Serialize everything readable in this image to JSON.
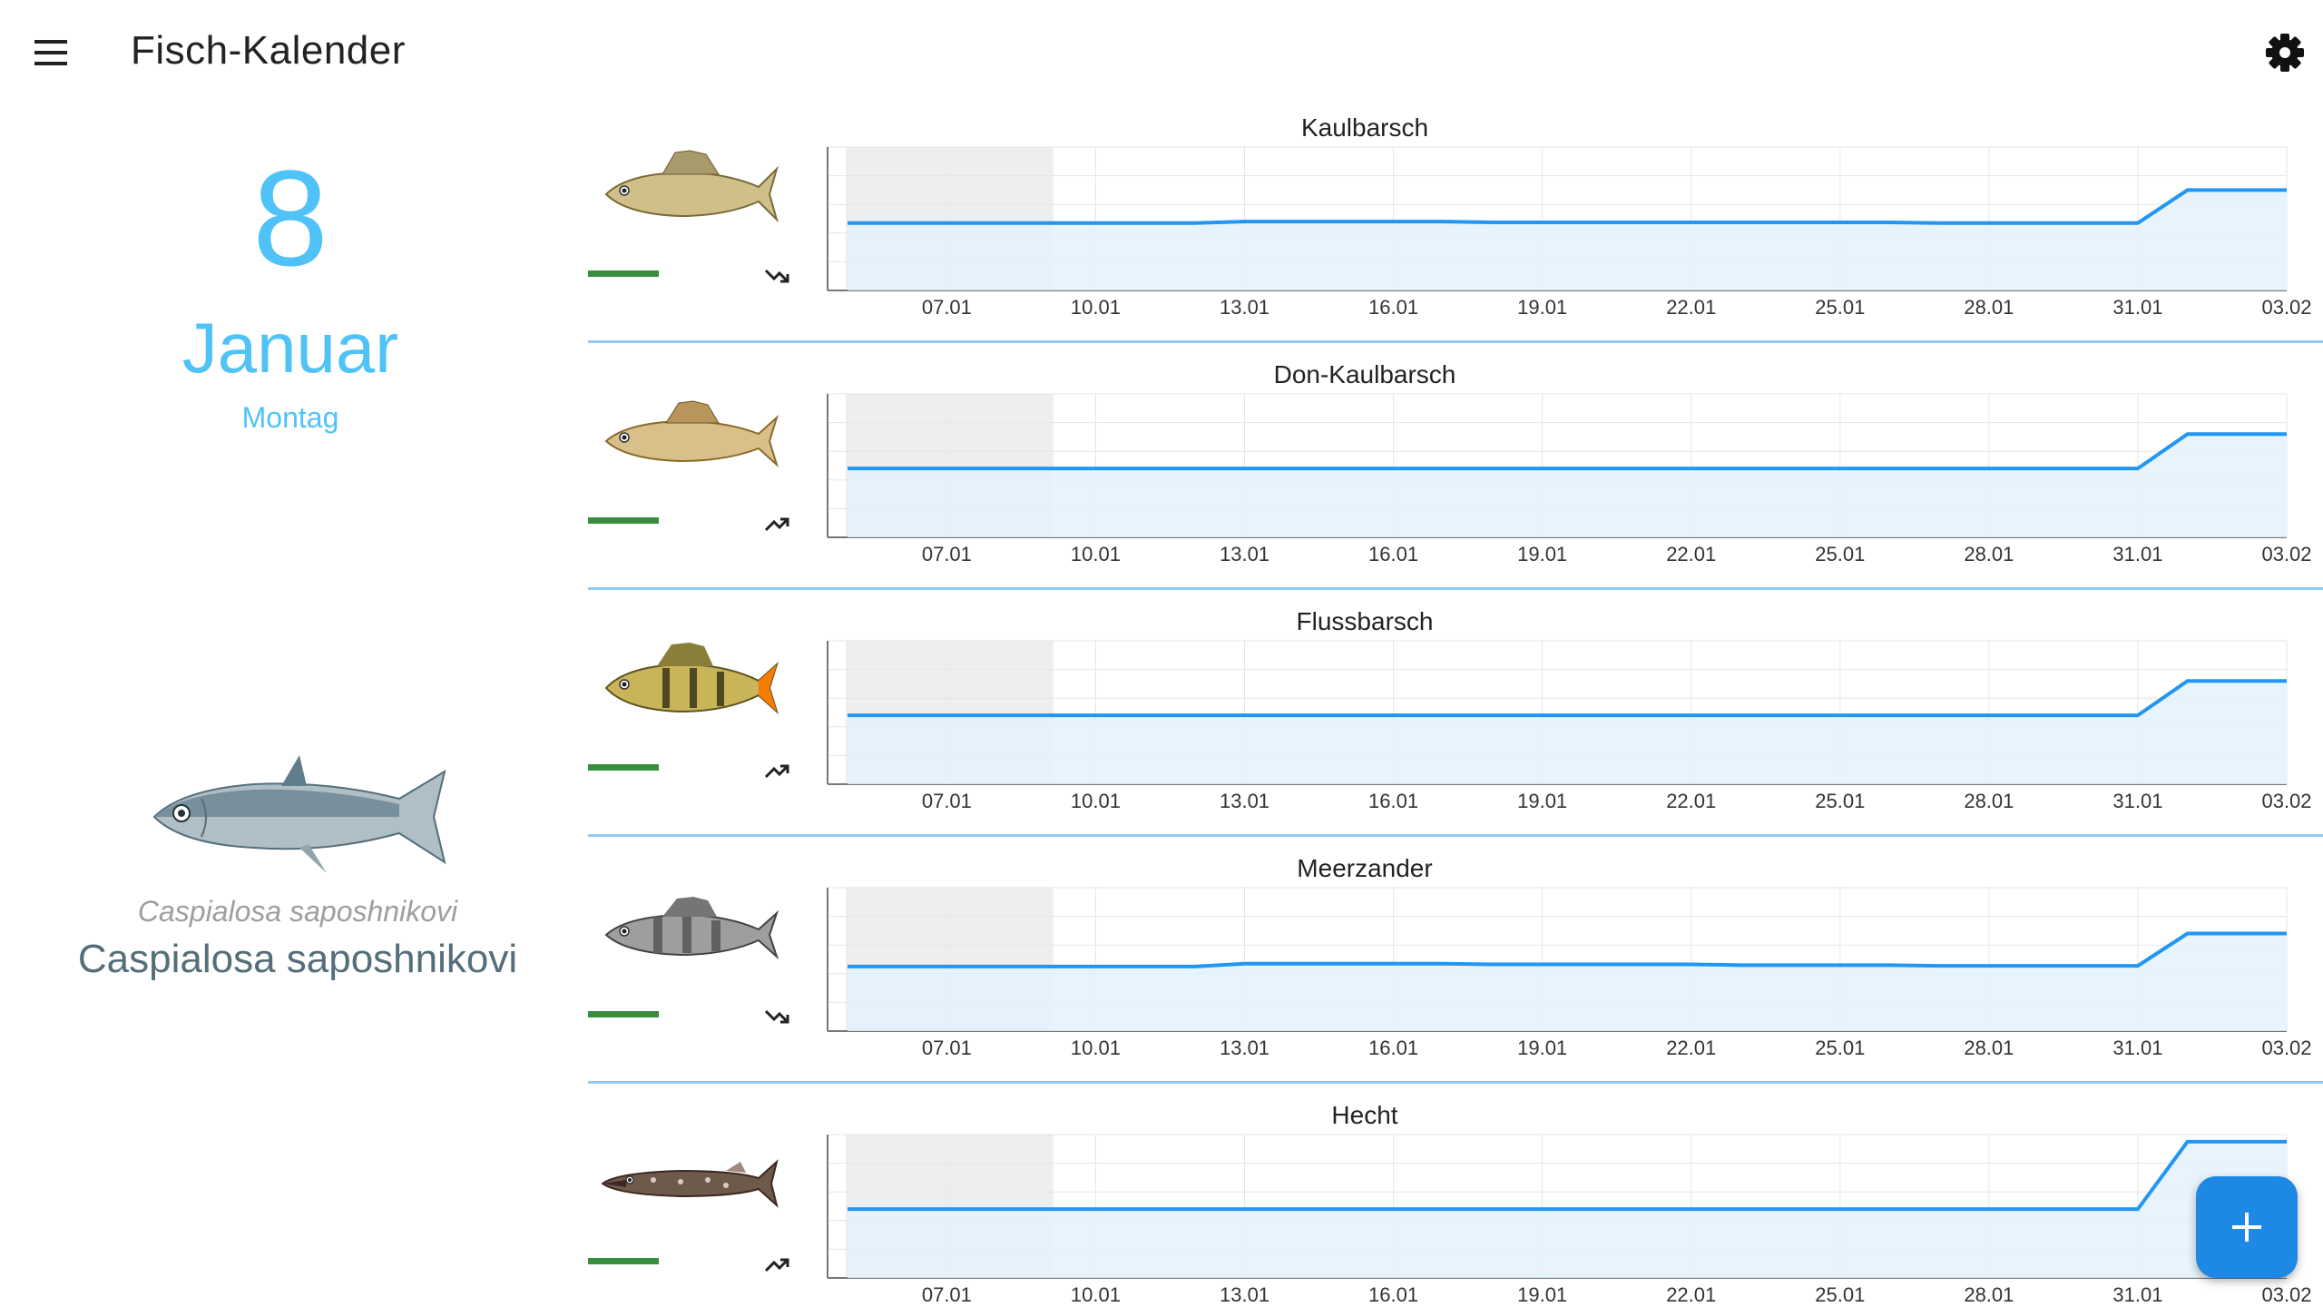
{
  "app": {
    "title": "Fisch-Kalender"
  },
  "date": {
    "day": "8",
    "month": "Januar",
    "weekday": "Montag"
  },
  "featured": {
    "latin_name": "Caspialosa saposhnikovi",
    "common_name": "Caspialosa saposhnikovi"
  },
  "icons": {
    "menu": "menu-icon",
    "settings": "gear-icon",
    "add": "plus-icon",
    "trend_up": "trending-up-icon",
    "trend_down": "trending-down-icon"
  },
  "colors": {
    "accent": "#4fc3f7",
    "line": "#2196f3",
    "fill": "#e3f2fd",
    "rating": "#388e3c",
    "fab": "#1e88e5",
    "divider": "#90caf9"
  },
  "chart_data": [
    {
      "type": "area",
      "title": "Kaulbarsch",
      "trend": "down",
      "x": [
        "05.01",
        "06.01",
        "07.01",
        "08.01",
        "09.01",
        "10.01",
        "11.01",
        "12.01",
        "13.01",
        "14.01",
        "15.01",
        "16.01",
        "17.01",
        "18.01",
        "19.01",
        "20.01",
        "21.01",
        "22.01",
        "23.01",
        "24.01",
        "25.01",
        "26.01",
        "27.01",
        "28.01",
        "29.01",
        "30.01",
        "31.01",
        "01.02",
        "02.02",
        "03.02"
      ],
      "y": [
        47,
        47,
        47,
        47,
        47,
        47,
        47,
        47,
        48,
        48,
        48,
        48,
        48,
        47.5,
        47.5,
        47.5,
        47.5,
        47.5,
        47.5,
        47.5,
        47.5,
        47.5,
        47,
        47,
        47,
        47,
        47,
        70,
        70,
        70
      ],
      "ylim": [
        0,
        100
      ],
      "tick_labels": [
        "07.01",
        "10.01",
        "13.01",
        "16.01",
        "19.01",
        "22.01",
        "25.01",
        "28.01",
        "31.01",
        "03.02"
      ]
    },
    {
      "type": "area",
      "title": "Don-Kaulbarsch",
      "trend": "up",
      "x": [
        "05.01",
        "06.01",
        "07.01",
        "08.01",
        "09.01",
        "10.01",
        "11.01",
        "12.01",
        "13.01",
        "14.01",
        "15.01",
        "16.01",
        "17.01",
        "18.01",
        "19.01",
        "20.01",
        "21.01",
        "22.01",
        "23.01",
        "24.01",
        "25.01",
        "26.01",
        "27.01",
        "28.01",
        "29.01",
        "30.01",
        "31.01",
        "01.02",
        "02.02",
        "03.02"
      ],
      "y": [
        48,
        48,
        48,
        48,
        48,
        48,
        48,
        48,
        48,
        48,
        48,
        48,
        48,
        48,
        48,
        48,
        48,
        48,
        48,
        48,
        48,
        48,
        48,
        48,
        48,
        48,
        48,
        72,
        72,
        72
      ],
      "ylim": [
        0,
        100
      ],
      "tick_labels": [
        "07.01",
        "10.01",
        "13.01",
        "16.01",
        "19.01",
        "22.01",
        "25.01",
        "28.01",
        "31.01",
        "03.02"
      ]
    },
    {
      "type": "area",
      "title": "Flussbarsch",
      "trend": "up",
      "x": [
        "05.01",
        "06.01",
        "07.01",
        "08.01",
        "09.01",
        "10.01",
        "11.01",
        "12.01",
        "13.01",
        "14.01",
        "15.01",
        "16.01",
        "17.01",
        "18.01",
        "19.01",
        "20.01",
        "21.01",
        "22.01",
        "23.01",
        "24.01",
        "25.01",
        "26.01",
        "27.01",
        "28.01",
        "29.01",
        "30.01",
        "31.01",
        "01.02",
        "02.02",
        "03.02"
      ],
      "y": [
        48,
        48,
        48,
        48,
        48,
        48,
        48,
        48,
        48,
        48,
        48,
        48,
        48,
        48,
        48,
        48,
        48,
        48,
        48,
        48,
        48,
        48,
        48,
        48,
        48,
        48,
        48,
        72,
        72,
        72
      ],
      "ylim": [
        0,
        100
      ],
      "tick_labels": [
        "07.01",
        "10.01",
        "13.01",
        "16.01",
        "19.01",
        "22.01",
        "25.01",
        "28.01",
        "31.01",
        "03.02"
      ]
    },
    {
      "type": "area",
      "title": "Meerzander",
      "trend": "down",
      "x": [
        "05.01",
        "06.01",
        "07.01",
        "08.01",
        "09.01",
        "10.01",
        "11.01",
        "12.01",
        "13.01",
        "14.01",
        "15.01",
        "16.01",
        "17.01",
        "18.01",
        "19.01",
        "20.01",
        "21.01",
        "22.01",
        "23.01",
        "24.01",
        "25.01",
        "26.01",
        "27.01",
        "28.01",
        "29.01",
        "30.01",
        "31.01",
        "01.02",
        "02.02",
        "03.02"
      ],
      "y": [
        45,
        45,
        45,
        45,
        45,
        45,
        45,
        45,
        47,
        47,
        47,
        47,
        47,
        46.5,
        46.5,
        46.5,
        46.5,
        46.5,
        46,
        46,
        46,
        46,
        45.5,
        45.5,
        45.5,
        45.5,
        45.5,
        68,
        68,
        68
      ],
      "ylim": [
        0,
        100
      ],
      "tick_labels": [
        "07.01",
        "10.01",
        "13.01",
        "16.01",
        "19.01",
        "22.01",
        "25.01",
        "28.01",
        "31.01",
        "03.02"
      ]
    },
    {
      "type": "area",
      "title": "Hecht",
      "trend": "up",
      "x": [
        "05.01",
        "06.01",
        "07.01",
        "08.01",
        "09.01",
        "10.01",
        "11.01",
        "12.01",
        "13.01",
        "14.01",
        "15.01",
        "16.01",
        "17.01",
        "18.01",
        "19.01",
        "20.01",
        "21.01",
        "22.01",
        "23.01",
        "24.01",
        "25.01",
        "26.01",
        "27.01",
        "28.01",
        "29.01",
        "30.01",
        "31.01",
        "01.02",
        "02.02",
        "03.02"
      ],
      "y": [
        48,
        48,
        48,
        48,
        48,
        48,
        48,
        48,
        48,
        48,
        48,
        48,
        48,
        48,
        48,
        48,
        48,
        48,
        48,
        48,
        48,
        48,
        48,
        48,
        48,
        48,
        48,
        95,
        95,
        95
      ],
      "ylim": [
        0,
        100
      ],
      "tick_labels": [
        "07.01",
        "10.01",
        "13.01",
        "16.01",
        "19.01",
        "22.01",
        "25.01",
        "28.01",
        "31.01",
        "03.02"
      ]
    }
  ]
}
